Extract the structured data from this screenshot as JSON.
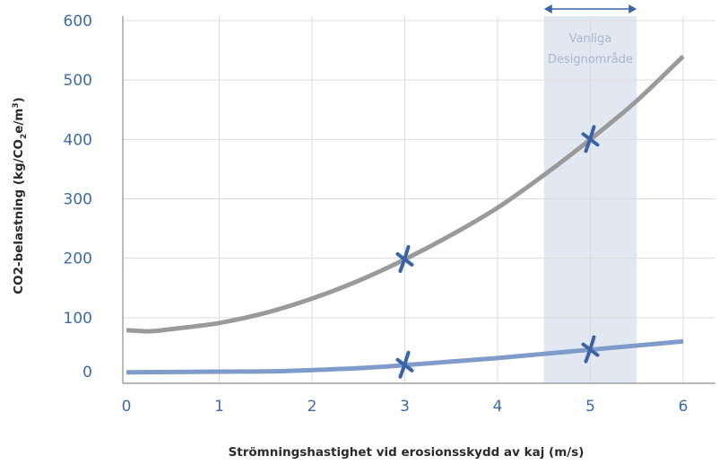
{
  "chart_data": {
    "type": "line",
    "xlabel": "Strömningshastighet vid erosionsskydd av kaj (m/s)",
    "ylabel_parts": [
      "CO2-belastning (kg/CO",
      "2",
      "e/m",
      "3",
      ")"
    ],
    "xlim": [
      0,
      6
    ],
    "ylim": [
      0,
      600
    ],
    "x_ticks": [
      0,
      1,
      2,
      3,
      4,
      5,
      6
    ],
    "y_ticks": [
      0,
      100,
      200,
      300,
      400,
      500,
      600
    ],
    "grid": "vertical and horizontal",
    "colors": {
      "upper": "#9a9a9a",
      "lower": "#7f9bc9",
      "marker": "#3a64a6",
      "band": "#e2e8f2",
      "band_arrow": "#3a64a6",
      "tick": "#3d6aa8"
    },
    "series": [
      {
        "x": [
          0,
          0.25,
          0.5,
          1,
          1.5,
          2,
          2.5,
          3,
          3.5,
          4,
          4.5,
          5,
          5.5,
          6
        ],
        "y": [
          79,
          77,
          81,
          91,
          108,
          132,
          162,
          198,
          239,
          285,
          340,
          400,
          465,
          540
        ],
        "markers_at": [
          3,
          5
        ]
      },
      {
        "x": [
          0,
          1,
          1.7,
          2.5,
          3,
          3.5,
          4,
          4.5,
          5,
          5.5,
          6
        ],
        "y": [
          8,
          9,
          10,
          15,
          20,
          26,
          32,
          39,
          46,
          53,
          60
        ],
        "markers_at": [
          3,
          5
        ]
      }
    ],
    "highlight_band": {
      "x_range": [
        4.5,
        5.5
      ],
      "label_lines": [
        "Vanliga",
        "Designområde"
      ]
    }
  }
}
